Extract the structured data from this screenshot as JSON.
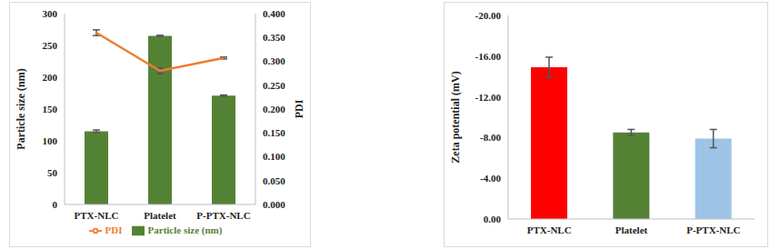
{
  "chart_data": [
    {
      "type": "bar",
      "categories": [
        "PTX-NLC",
        "Platelet",
        "P-PTX-NLC"
      ],
      "series": [
        {
          "name": "Particle size (nm)",
          "type": "bar",
          "color": "#548235",
          "values": [
            115,
            265,
            171
          ],
          "errors": [
            2,
            1,
            1
          ]
        },
        {
          "name": "PDI",
          "type": "line",
          "color": "#ED7D31",
          "axis": "y2",
          "values": [
            0.36,
            0.28,
            0.307
          ],
          "errors": [
            0.006,
            0.006,
            0.002
          ]
        }
      ],
      "y_label": "Particle size (nm)",
      "y2_label": "PDI",
      "ylim": [
        0,
        300
      ],
      "yticks": [
        0,
        50,
        100,
        150,
        200,
        250,
        300
      ],
      "y2lim": [
        0,
        0.4
      ],
      "y2ticks": [
        {
          "value": 0,
          "label": "0.000"
        },
        {
          "value": 0.05,
          "label": "0.050"
        },
        {
          "value": 0.1,
          "label": "0.100"
        },
        {
          "value": 0.15,
          "label": "0.150"
        },
        {
          "value": 0.2,
          "label": "0.200"
        },
        {
          "value": 0.25,
          "label": "0.250"
        },
        {
          "value": 0.3,
          "label": "0.300"
        },
        {
          "value": 0.35,
          "label": "0.350"
        },
        {
          "value": 0.4,
          "label": "0.400"
        }
      ],
      "legend": "bottom",
      "grid": false
    },
    {
      "type": "bar",
      "categories": [
        "PTX-NLC",
        "Platelet",
        "P-PTX-NLC"
      ],
      "values": [
        -14.9,
        -8.5,
        -7.9
      ],
      "errors": [
        1.0,
        0.3,
        0.9
      ],
      "colors": [
        "#FF0000",
        "#548235",
        "#9DC3E6"
      ],
      "y_label": "Zeta potential  (mV)",
      "ylim": [
        0,
        -20
      ],
      "yticks": [
        {
          "value": 0,
          "label": "0.00"
        },
        {
          "value": -4,
          "label": "-4.00"
        },
        {
          "value": -8,
          "label": "-8.00"
        },
        {
          "value": -12,
          "label": "-12.00"
        },
        {
          "value": -16,
          "label": "-16.00"
        },
        {
          "value": -20,
          "label": "-20.00"
        }
      ],
      "grid": false
    }
  ]
}
